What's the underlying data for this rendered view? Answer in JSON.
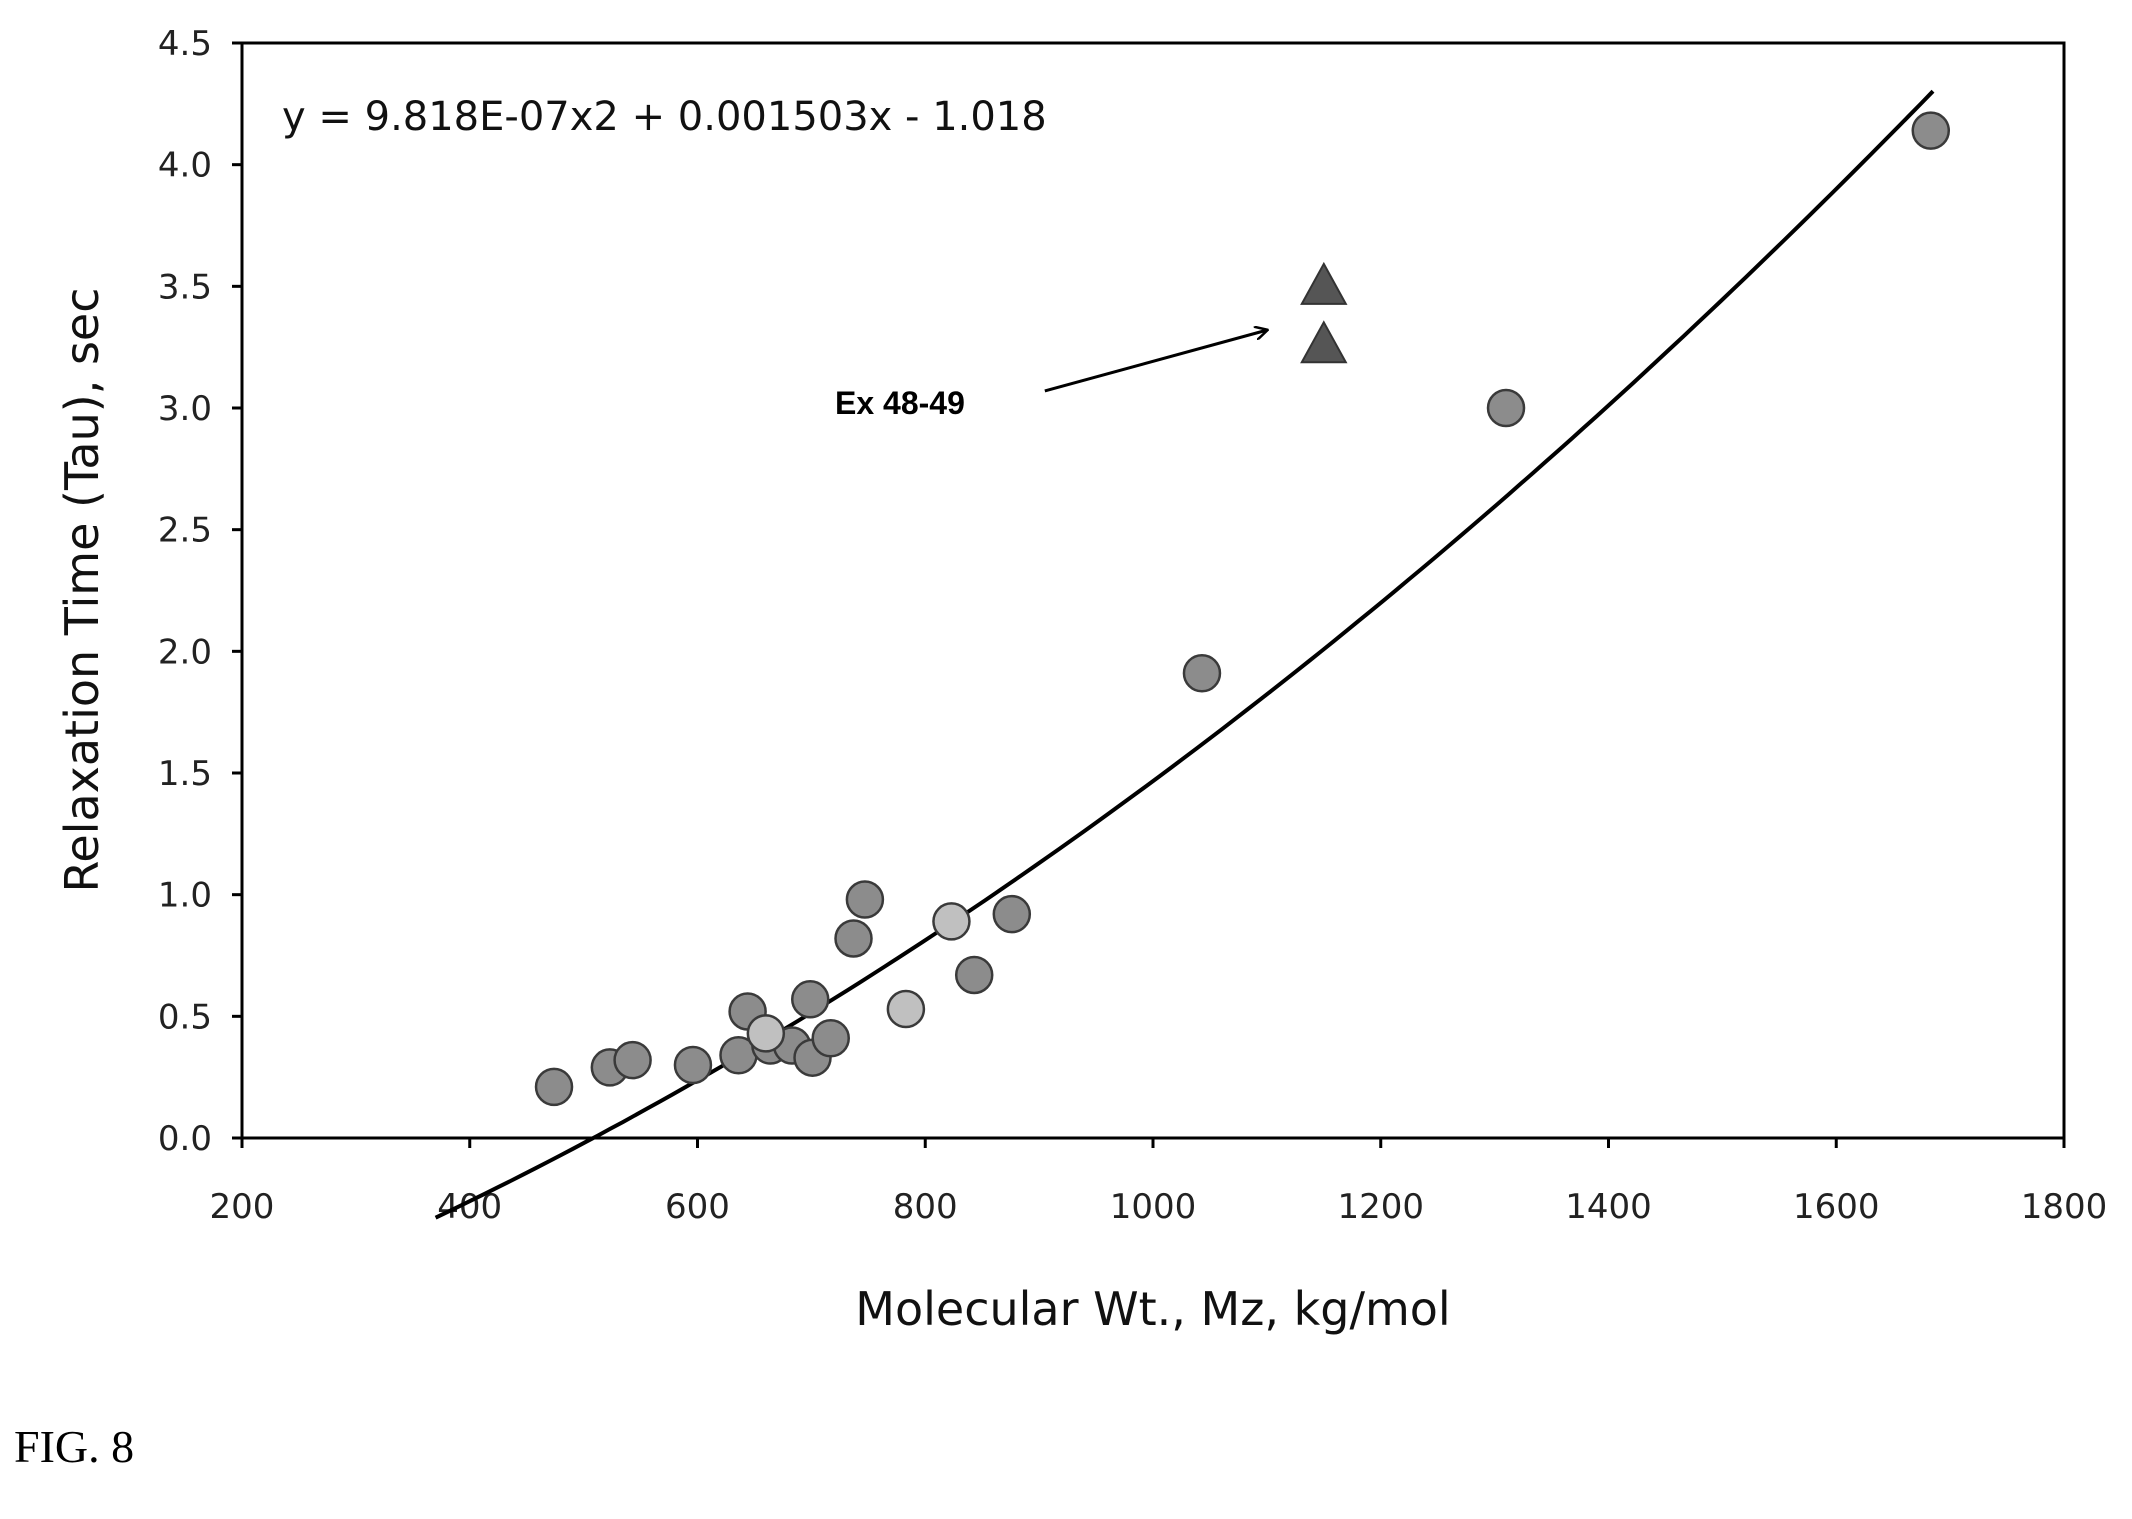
{
  "figure_caption": "FIG. 8",
  "chart_data": {
    "type": "scatter",
    "title": "",
    "xlabel": "Molecular Wt., Mz, kg/mol",
    "ylabel": "Relaxation Time (Tau), sec",
    "xlim": [
      200,
      1800
    ],
    "ylim": [
      0.0,
      4.5
    ],
    "x_ticks": [
      "200",
      "400",
      "600",
      "800",
      "1000",
      "1200",
      "1400",
      "1600",
      "1800"
    ],
    "y_ticks": [
      "0.0",
      "0.5",
      "1.0",
      "1.5",
      "2.0",
      "2.5",
      "3.0",
      "3.5",
      "4.0",
      "4.5"
    ],
    "grid": false,
    "equation": "y = 9.818E-07x2 + 0.001503x - 1.018",
    "annotation": {
      "text": "Ex 48-49",
      "arrow_from": [
        905,
        3.07
      ],
      "arrow_to": [
        1100,
        3.32
      ]
    },
    "trendline": {
      "type": "polynomial",
      "coefficients": [
        9.818e-07,
        0.001503,
        -1.018
      ],
      "x_range": [
        370,
        1685
      ],
      "color": "#000000"
    },
    "colors": {
      "circle_dark": "#8c8c8c",
      "circle_light": "#c0c0c0",
      "circle_edge": "#3a3a3a",
      "triangle": "#555555",
      "axis": "#000000"
    },
    "series": [
      {
        "marker": "circle",
        "points": [
          [
            474,
            0.21
          ],
          [
            523,
            0.29
          ],
          [
            543,
            0.32
          ],
          [
            596,
            0.3
          ],
          [
            636,
            0.34
          ],
          [
            644,
            0.52
          ],
          [
            664,
            0.38
          ],
          [
            683,
            0.38
          ],
          [
            699,
            0.57
          ],
          [
            701,
            0.33
          ],
          [
            717,
            0.41
          ],
          [
            737,
            0.82
          ],
          [
            747,
            0.98
          ],
          [
            843,
            0.67
          ],
          [
            876,
            0.92
          ],
          [
            1043,
            1.91
          ],
          [
            1310,
            3.0
          ],
          [
            1683,
            4.14
          ]
        ],
        "shade": "dark"
      },
      {
        "marker": "circle",
        "points": [
          [
            660,
            0.43
          ],
          [
            783,
            0.53
          ],
          [
            823,
            0.89
          ]
        ],
        "shade": "light"
      },
      {
        "marker": "triangle",
        "points": [
          [
            1150,
            3.51
          ],
          [
            1150,
            3.27
          ]
        ],
        "shade": "triangle"
      }
    ]
  }
}
